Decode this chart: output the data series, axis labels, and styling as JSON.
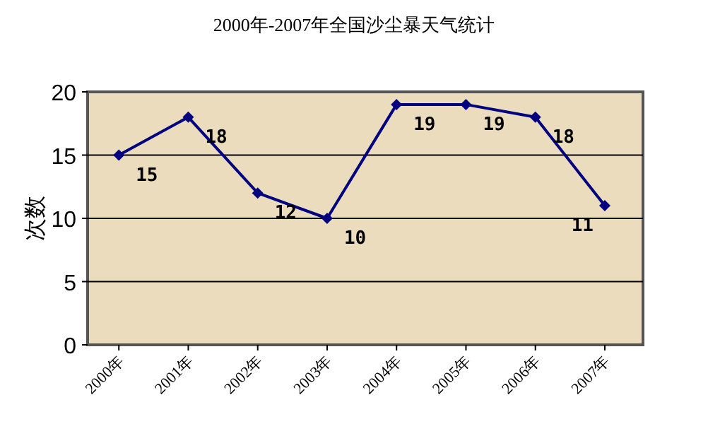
{
  "chart_data": {
    "type": "line",
    "title": "2000年-2007年全国沙尘暴天气统计",
    "ylabel": "次数",
    "categories": [
      "2000年",
      "2001年",
      "2002年",
      "2003年",
      "2004年",
      "2005年",
      "2006年",
      "2007年"
    ],
    "series": [
      {
        "color": "#000080",
        "values": [
          15,
          18,
          12,
          10,
          19,
          19,
          18,
          11
        ]
      }
    ],
    "ylim": [
      0,
      20
    ],
    "yticks": [
      0,
      5,
      10,
      15,
      20
    ],
    "grid": "y",
    "marker": "diamond",
    "line_style": "solid",
    "data_labels": true
  }
}
